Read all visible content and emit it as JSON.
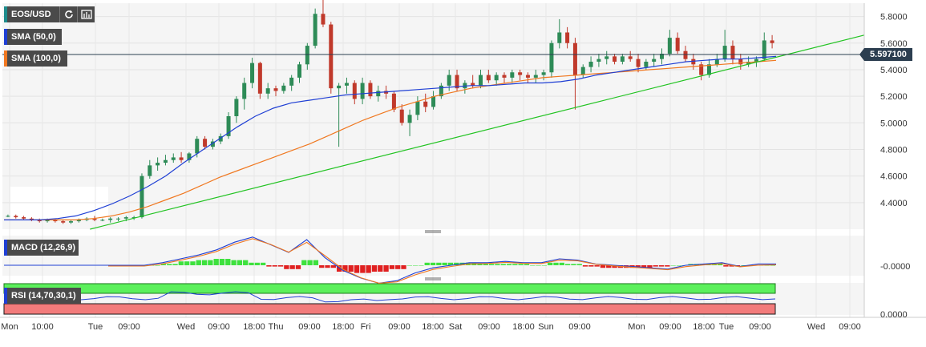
{
  "toolbar": {
    "symbol": "EOS/USD",
    "refresh_icon": "refresh-icon",
    "settings_icon": "chart-settings-icon"
  },
  "indicators": {
    "sma50": {
      "label": "SMA (50,0)",
      "color": "#1f3fd4"
    },
    "sma100": {
      "label": "SMA (100,0)",
      "color": "#f07820"
    },
    "macd": {
      "label": "MACD (12,26,9)",
      "color": "#1f3fd4"
    },
    "rsi": {
      "label": "RSI (14,70,30,1)",
      "color": "#1f3fd4"
    }
  },
  "price_axis": {
    "ticks": [
      "5.8000",
      "5.6000",
      "5.4000",
      "5.2000",
      "5.0000",
      "4.8000",
      "4.6000",
      "4.4000"
    ],
    "current_price": "5.597100"
  },
  "macd_axis": {
    "ticks": [
      "-0.0000"
    ]
  },
  "rsi_axis": {
    "ticks": [
      "0.0000"
    ]
  },
  "time_axis": {
    "labels": [
      "Mon",
      "10:00",
      "Tue",
      "09:00",
      "Wed",
      "09:00",
      "18:00",
      "Thu",
      "09:00",
      "18:00",
      "Fri",
      "09:00",
      "18:00",
      "Sat",
      "09:00",
      "18:00",
      "Sun",
      "09:00",
      "Mon",
      "09:00",
      "18:00",
      "Tue",
      "09:00",
      "Wed",
      "09:00"
    ]
  },
  "colors": {
    "bull": "#2e8b57",
    "bear": "#c0392b",
    "trendline": "#22c322",
    "macd_pos": "#3ee13e",
    "macd_neg": "#e02020",
    "rsi_over": "#5cf05c",
    "rsi_under": "#f27b7b"
  },
  "chart_data": {
    "type": "candlestick",
    "ylim": [
      4.2,
      5.9
    ],
    "candles": [
      [
        4.3,
        4.31,
        4.29,
        4.3
      ],
      [
        4.3,
        4.31,
        4.28,
        4.29
      ],
      [
        4.29,
        4.3,
        4.27,
        4.28
      ],
      [
        4.28,
        4.29,
        4.26,
        4.27
      ],
      [
        4.27,
        4.28,
        4.25,
        4.26
      ],
      [
        4.26,
        4.28,
        4.25,
        4.27
      ],
      [
        4.27,
        4.28,
        4.25,
        4.26
      ],
      [
        4.26,
        4.27,
        4.24,
        4.25
      ],
      [
        4.25,
        4.27,
        4.24,
        4.26
      ],
      [
        4.26,
        4.28,
        4.25,
        4.27
      ],
      [
        4.27,
        4.29,
        4.26,
        4.28
      ],
      [
        4.28,
        4.3,
        4.26,
        4.27
      ],
      [
        4.27,
        4.28,
        4.26,
        4.27
      ],
      [
        4.27,
        4.29,
        4.25,
        4.28
      ],
      [
        4.28,
        4.29,
        4.26,
        4.28
      ],
      [
        4.28,
        4.3,
        4.26,
        4.29
      ],
      [
        4.29,
        4.3,
        4.27,
        4.29
      ],
      [
        4.29,
        4.62,
        4.28,
        4.6
      ],
      [
        4.6,
        4.72,
        4.58,
        4.68
      ],
      [
        4.68,
        4.74,
        4.64,
        4.7
      ],
      [
        4.7,
        4.76,
        4.68,
        4.72
      ],
      [
        4.72,
        4.77,
        4.7,
        4.74
      ],
      [
        4.74,
        4.78,
        4.7,
        4.72
      ],
      [
        4.72,
        4.78,
        4.7,
        4.77
      ],
      [
        4.77,
        4.9,
        4.74,
        4.88
      ],
      [
        4.88,
        4.9,
        4.8,
        4.82
      ],
      [
        4.82,
        4.88,
        4.8,
        4.86
      ],
      [
        4.86,
        4.92,
        4.84,
        4.9
      ],
      [
        4.9,
        5.08,
        4.88,
        5.05
      ],
      [
        5.05,
        5.2,
        5.0,
        5.18
      ],
      [
        5.18,
        5.34,
        5.1,
        5.3
      ],
      [
        5.3,
        5.49,
        5.26,
        5.45
      ],
      [
        5.45,
        5.46,
        5.18,
        5.22
      ],
      [
        5.22,
        5.3,
        5.18,
        5.26
      ],
      [
        5.26,
        5.28,
        5.2,
        5.24
      ],
      [
        5.24,
        5.3,
        5.22,
        5.28
      ],
      [
        5.28,
        5.36,
        5.24,
        5.34
      ],
      [
        5.34,
        5.46,
        5.3,
        5.44
      ],
      [
        5.44,
        5.6,
        5.4,
        5.58
      ],
      [
        5.58,
        5.86,
        5.56,
        5.82
      ],
      [
        5.82,
        5.96,
        5.72,
        5.74
      ],
      [
        5.74,
        5.76,
        5.22,
        5.26
      ],
      [
        5.26,
        5.3,
        4.82,
        5.28
      ],
      [
        5.28,
        5.34,
        5.22,
        5.3
      ],
      [
        5.3,
        5.32,
        5.14,
        5.18
      ],
      [
        5.18,
        5.34,
        5.14,
        5.3
      ],
      [
        5.3,
        5.32,
        5.18,
        5.2
      ],
      [
        5.2,
        5.28,
        5.16,
        5.24
      ],
      [
        5.24,
        5.28,
        5.18,
        5.22
      ],
      [
        5.22,
        5.24,
        5.08,
        5.1
      ],
      [
        5.1,
        5.14,
        4.98,
        5.0
      ],
      [
        5.0,
        5.1,
        4.9,
        5.06
      ],
      [
        5.06,
        5.2,
        5.02,
        5.16
      ],
      [
        5.16,
        5.22,
        5.08,
        5.12
      ],
      [
        5.12,
        5.24,
        5.1,
        5.2
      ],
      [
        5.2,
        5.3,
        5.18,
        5.28
      ],
      [
        5.28,
        5.4,
        5.24,
        5.36
      ],
      [
        5.36,
        5.4,
        5.24,
        5.26
      ],
      [
        5.26,
        5.32,
        5.22,
        5.3
      ],
      [
        5.3,
        5.36,
        5.26,
        5.28
      ],
      [
        5.28,
        5.4,
        5.26,
        5.36
      ],
      [
        5.36,
        5.4,
        5.3,
        5.32
      ],
      [
        5.32,
        5.38,
        5.28,
        5.36
      ],
      [
        5.36,
        5.38,
        5.3,
        5.34
      ],
      [
        5.34,
        5.4,
        5.3,
        5.38
      ],
      [
        5.38,
        5.4,
        5.32,
        5.36
      ],
      [
        5.36,
        5.38,
        5.3,
        5.34
      ],
      [
        5.34,
        5.4,
        5.3,
        5.36
      ],
      [
        5.36,
        5.4,
        5.32,
        5.38
      ],
      [
        5.38,
        5.62,
        5.34,
        5.6
      ],
      [
        5.6,
        5.78,
        5.56,
        5.68
      ],
      [
        5.68,
        5.72,
        5.56,
        5.6
      ],
      [
        5.6,
        5.64,
        5.1,
        5.36
      ],
      [
        5.36,
        5.44,
        5.34,
        5.42
      ],
      [
        5.42,
        5.5,
        5.38,
        5.46
      ],
      [
        5.46,
        5.52,
        5.42,
        5.48
      ],
      [
        5.48,
        5.54,
        5.44,
        5.5
      ],
      [
        5.5,
        5.52,
        5.44,
        5.46
      ],
      [
        5.46,
        5.52,
        5.44,
        5.5
      ],
      [
        5.5,
        5.54,
        5.46,
        5.48
      ],
      [
        5.48,
        5.52,
        5.38,
        5.42
      ],
      [
        5.42,
        5.48,
        5.4,
        5.46
      ],
      [
        5.46,
        5.52,
        5.42,
        5.48
      ],
      [
        5.48,
        5.56,
        5.44,
        5.52
      ],
      [
        5.52,
        5.7,
        5.5,
        5.64
      ],
      [
        5.64,
        5.68,
        5.52,
        5.54
      ],
      [
        5.54,
        5.58,
        5.46,
        5.48
      ],
      [
        5.48,
        5.52,
        5.4,
        5.44
      ],
      [
        5.44,
        5.46,
        5.32,
        5.36
      ],
      [
        5.36,
        5.48,
        5.34,
        5.44
      ],
      [
        5.44,
        5.52,
        5.42,
        5.48
      ],
      [
        5.48,
        5.7,
        5.46,
        5.58
      ],
      [
        5.58,
        5.62,
        5.44,
        5.48
      ],
      [
        5.48,
        5.52,
        5.4,
        5.44
      ],
      [
        5.44,
        5.5,
        5.42,
        5.46
      ],
      [
        5.46,
        5.5,
        5.42,
        5.48
      ],
      [
        5.48,
        5.68,
        5.46,
        5.62
      ],
      [
        5.62,
        5.66,
        5.56,
        5.6
      ]
    ],
    "sma50": [
      4.27,
      4.27,
      4.27,
      4.28,
      4.3,
      4.34,
      4.39,
      4.45,
      4.52,
      4.6,
      4.7,
      4.79,
      4.88,
      4.97,
      5.05,
      5.11,
      5.15,
      5.17,
      5.19,
      5.21,
      5.22,
      5.23,
      5.24,
      5.25,
      5.26,
      5.27,
      5.28,
      5.28,
      5.29,
      5.3,
      5.3,
      5.31,
      5.33,
      5.36,
      5.38,
      5.4,
      5.42,
      5.44,
      5.46,
      5.47,
      5.48,
      5.48,
      5.49,
      5.5
    ],
    "sma100": [
      4.27,
      4.27,
      4.27,
      4.27,
      4.27,
      4.28,
      4.3,
      4.33,
      4.37,
      4.42,
      4.47,
      4.53,
      4.59,
      4.64,
      4.69,
      4.74,
      4.79,
      4.84,
      4.9,
      4.96,
      5.02,
      5.07,
      5.12,
      5.16,
      5.2,
      5.23,
      5.26,
      5.28,
      5.3,
      5.32,
      5.34,
      5.35,
      5.36,
      5.37,
      5.38,
      5.39,
      5.4,
      5.41,
      5.42,
      5.43,
      5.44,
      5.45,
      5.46,
      5.47
    ],
    "trendline": {
      "from": [
        0.1,
        4.2
      ],
      "to": [
        1.0,
        5.66
      ]
    },
    "macd_line": [
      0,
      0,
      0,
      0.02,
      0.05,
      0.08,
      0.12,
      0.18,
      0.22,
      0.16,
      0.1,
      0.2,
      0.06,
      -0.04,
      -0.1,
      -0.14,
      -0.12,
      -0.06,
      -0.02,
      0.0,
      0.02,
      0.02,
      0.03,
      0.02,
      0.02,
      0.05,
      0.04,
      0.01,
      0.0,
      -0.01,
      -0.02,
      -0.03,
      0.0,
      0.01,
      0.02,
      -0.01,
      0.01,
      0.01
    ],
    "macd_hist": [
      0,
      0,
      0,
      0.01,
      0.03,
      0.04,
      0.05,
      0.04,
      0.02,
      -0.01,
      -0.03,
      0.04,
      -0.02,
      -0.05,
      -0.06,
      -0.05,
      -0.03,
      0.0,
      0.02,
      0.02,
      0.02,
      0.01,
      0.01,
      0.01,
      0.0,
      0.02,
      0.01,
      -0.01,
      -0.02,
      -0.02,
      -0.02,
      -0.01,
      0.0,
      0.01,
      0.01,
      -0.01,
      0.0,
      0.0
    ]
  }
}
